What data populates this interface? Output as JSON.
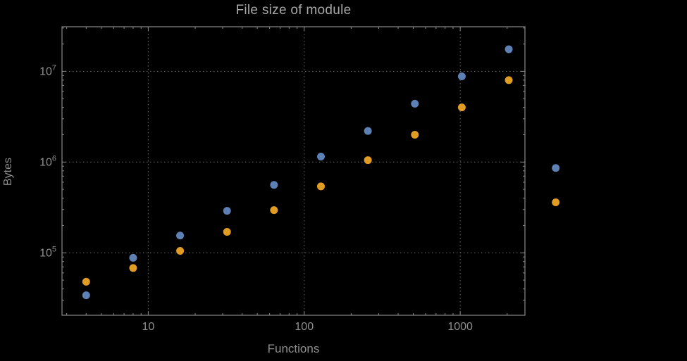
{
  "page": {
    "background": "#000000"
  },
  "chart_data": {
    "type": "scatter",
    "title": "File size of module",
    "xlabel": "Functions",
    "ylabel": "Bytes",
    "x_scale": "log",
    "y_scale": "log",
    "xlim": [
      2.8,
      2600
    ],
    "ylim": [
      20500,
      31000000
    ],
    "grid": "dotted at major ticks",
    "legend": "none",
    "x": [
      4,
      8,
      16,
      32,
      64,
      128,
      256,
      512,
      1024,
      2048,
      4096
    ],
    "series": [
      {
        "name": "blue-series",
        "color": "#5E81B5",
        "values": [
          34000,
          88000,
          155000,
          290000,
          560000,
          1150000,
          2200000,
          4400000,
          8800000,
          17500000,
          860000
        ]
      },
      {
        "name": "orange-series",
        "color": "#E19C24",
        "values": [
          48000,
          68000,
          105000,
          170000,
          295000,
          540000,
          1050000,
          2000000,
          4000000,
          8000000,
          360000
        ]
      }
    ],
    "xticks": [
      {
        "value": 10,
        "label": "10"
      },
      {
        "value": 100,
        "label": "100"
      },
      {
        "value": 1000,
        "label": "1000"
      }
    ],
    "yticks": [
      {
        "value": 100000,
        "label_base": "10",
        "label_exp": "5"
      },
      {
        "value": 1000000,
        "label_base": "10",
        "label_exp": "6"
      },
      {
        "value": 10000000,
        "label_base": "10",
        "label_exp": "7"
      }
    ]
  },
  "styles": {
    "frame_color": "#8a8a8a",
    "grid_color": "#6b6b6b",
    "tick_text_color": "#8f8f8f",
    "title_color": "#a8a8a8",
    "point_radius": 5.5
  }
}
